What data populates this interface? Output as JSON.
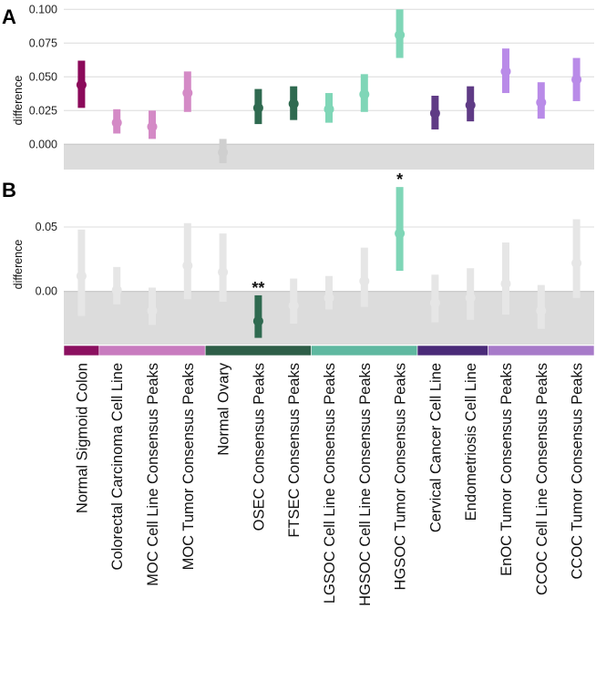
{
  "chart_data": [
    {
      "type": "scatter",
      "panel_label": "A",
      "ylabel": "difference",
      "ylim": [
        -0.018,
        0.1
      ],
      "yticks": [
        "0.000",
        "0.025",
        "0.050",
        "0.075",
        "0.100"
      ],
      "ytick_values": [
        0,
        0.025,
        0.05,
        0.075,
        0.1
      ],
      "grid": true,
      "shaded_below_zero": true,
      "points": [
        {
          "mean": 0.044,
          "lo": 0.027,
          "hi": 0.062,
          "color": "#8b0a5a"
        },
        {
          "mean": 0.016,
          "lo": 0.008,
          "hi": 0.026,
          "color": "#d48ac6"
        },
        {
          "mean": 0.013,
          "lo": 0.004,
          "hi": 0.025,
          "color": "#d48ac6"
        },
        {
          "mean": 0.038,
          "lo": 0.024,
          "hi": 0.054,
          "color": "#d48ac6"
        },
        {
          "mean": -0.006,
          "lo": -0.014,
          "hi": 0.004,
          "color": "#cfcfcf"
        },
        {
          "mean": 0.027,
          "lo": 0.015,
          "hi": 0.041,
          "color": "#2f6a50"
        },
        {
          "mean": 0.03,
          "lo": 0.018,
          "hi": 0.043,
          "color": "#2f6a50"
        },
        {
          "mean": 0.026,
          "lo": 0.016,
          "hi": 0.038,
          "color": "#7fd6b7"
        },
        {
          "mean": 0.037,
          "lo": 0.024,
          "hi": 0.052,
          "color": "#7fd6b7"
        },
        {
          "mean": 0.081,
          "lo": 0.064,
          "hi": 0.1,
          "color": "#7fd6b7"
        },
        {
          "mean": 0.023,
          "lo": 0.011,
          "hi": 0.036,
          "color": "#5f3b85"
        },
        {
          "mean": 0.029,
          "lo": 0.017,
          "hi": 0.043,
          "color": "#5f3b85"
        },
        {
          "mean": 0.054,
          "lo": 0.038,
          "hi": 0.071,
          "color": "#b98be8"
        },
        {
          "mean": 0.031,
          "lo": 0.019,
          "hi": 0.046,
          "color": "#b98be8"
        },
        {
          "mean": 0.048,
          "lo": 0.032,
          "hi": 0.064,
          "color": "#b98be8"
        }
      ]
    },
    {
      "type": "scatter",
      "panel_label": "B",
      "ylabel": "difference",
      "ylim": [
        -0.041,
        0.088
      ],
      "yticks": [
        "0.00",
        "0.05"
      ],
      "ytick_values": [
        0,
        0.05
      ],
      "grid": true,
      "shaded_below_zero": true,
      "points": [
        {
          "mean": 0.012,
          "lo": -0.019,
          "hi": 0.048,
          "color": "#e6e6e6",
          "sig": ""
        },
        {
          "mean": 0.001,
          "lo": -0.01,
          "hi": 0.019,
          "color": "#e6e6e6",
          "sig": ""
        },
        {
          "mean": -0.015,
          "lo": -0.026,
          "hi": 0.003,
          "color": "#e6e6e6",
          "sig": ""
        },
        {
          "mean": 0.02,
          "lo": -0.006,
          "hi": 0.053,
          "color": "#e6e6e6",
          "sig": ""
        },
        {
          "mean": 0.015,
          "lo": -0.008,
          "hi": 0.045,
          "color": "#e6e6e6",
          "sig": ""
        },
        {
          "mean": -0.023,
          "lo": -0.036,
          "hi": -0.003,
          "color": "#2f6a50",
          "sig": "**"
        },
        {
          "mean": -0.011,
          "lo": -0.025,
          "hi": 0.01,
          "color": "#e6e6e6",
          "sig": ""
        },
        {
          "mean": -0.005,
          "lo": -0.014,
          "hi": 0.012,
          "color": "#e6e6e6",
          "sig": ""
        },
        {
          "mean": 0.008,
          "lo": -0.012,
          "hi": 0.034,
          "color": "#e6e6e6",
          "sig": ""
        },
        {
          "mean": 0.045,
          "lo": 0.016,
          "hi": 0.081,
          "color": "#7fd6b7",
          "sig": "*"
        },
        {
          "mean": -0.009,
          "lo": -0.024,
          "hi": 0.013,
          "color": "#e6e6e6",
          "sig": ""
        },
        {
          "mean": -0.005,
          "lo": -0.022,
          "hi": 0.018,
          "color": "#e6e6e6",
          "sig": ""
        },
        {
          "mean": 0.006,
          "lo": -0.018,
          "hi": 0.038,
          "color": "#e6e6e6",
          "sig": ""
        },
        {
          "mean": -0.015,
          "lo": -0.029,
          "hi": 0.005,
          "color": "#e6e6e6",
          "sig": ""
        },
        {
          "mean": 0.022,
          "lo": -0.005,
          "hi": 0.056,
          "color": "#e6e6e6",
          "sig": ""
        }
      ]
    }
  ],
  "categories": [
    "Normal Sigmoid Colon",
    "Colorectal Carcinoma Cell Line",
    "MOC Cell Line Consensus Peaks",
    "MOC Tumor Consensus Peaks",
    "Normal Ovary",
    "OSEC Consensus Peaks",
    "FTSEC Consensus Peaks",
    "LGSOC Cell Line Consensus Peaks",
    "HGSOC Cell Line Consensus Peaks",
    "HGSOC Tumor Consensus Peaks",
    "Cervical Cancer Cell Line",
    "Endometriosis Cell Line",
    "EnOC Tumor Consensus Peaks",
    "CCOC Cell Line Consensus Peaks",
    "CCOC Tumor Consensus Peaks"
  ],
  "group_bar": [
    {
      "start": 0,
      "end": 0,
      "color": "#8b1060"
    },
    {
      "start": 1,
      "end": 3,
      "color": "#c87bbf"
    },
    {
      "start": 4,
      "end": 6,
      "color": "#2e5e48"
    },
    {
      "start": 7,
      "end": 9,
      "color": "#5fb8a0"
    },
    {
      "start": 10,
      "end": 11,
      "color": "#4a2a78"
    },
    {
      "start": 12,
      "end": 14,
      "color": "#a77ac9"
    }
  ]
}
